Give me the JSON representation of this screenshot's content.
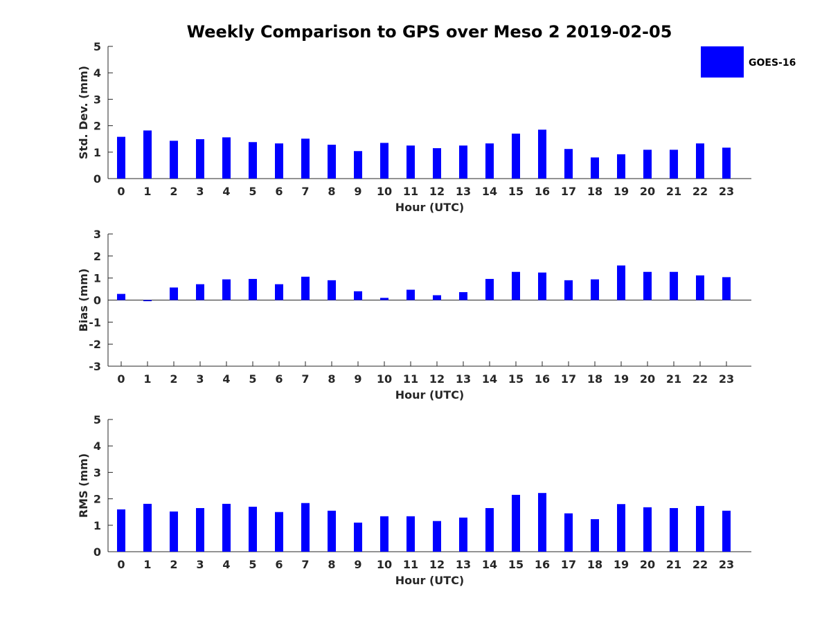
{
  "chart_data": {
    "title": "Weekly Comparison to GPS over Meso 2 2019-02-05",
    "legend": {
      "label": "GOES-16",
      "color": "#0000ff",
      "position": "top-right"
    },
    "bar_color": "#0000ff",
    "panels": [
      {
        "type": "bar",
        "name": "std-dev",
        "xlabel": "Hour (UTC)",
        "ylabel": "Std. Dev. (mm)",
        "categories": [
          "0",
          "1",
          "2",
          "3",
          "4",
          "5",
          "6",
          "7",
          "8",
          "9",
          "10",
          "11",
          "12",
          "13",
          "14",
          "15",
          "16",
          "17",
          "18",
          "19",
          "20",
          "21",
          "22",
          "23"
        ],
        "values": [
          1.58,
          1.82,
          1.43,
          1.49,
          1.56,
          1.38,
          1.33,
          1.51,
          1.28,
          1.04,
          1.35,
          1.25,
          1.15,
          1.25,
          1.33,
          1.7,
          1.85,
          1.12,
          0.8,
          0.92,
          1.09,
          1.09,
          1.33,
          1.17
        ],
        "ylim": [
          0,
          5
        ],
        "yticks": [
          "0",
          "1",
          "2",
          "3",
          "4",
          "5"
        ]
      },
      {
        "type": "bar",
        "name": "bias",
        "xlabel": "Hour (UTC)",
        "ylabel": "Bias (mm)",
        "categories": [
          "0",
          "1",
          "2",
          "3",
          "4",
          "5",
          "6",
          "7",
          "8",
          "9",
          "10",
          "11",
          "12",
          "13",
          "14",
          "15",
          "16",
          "17",
          "18",
          "19",
          "20",
          "21",
          "22",
          "23"
        ],
        "values": [
          0.28,
          -0.05,
          0.57,
          0.72,
          0.94,
          0.96,
          0.72,
          1.06,
          0.9,
          0.4,
          0.1,
          0.47,
          0.22,
          0.36,
          0.96,
          1.28,
          1.25,
          0.9,
          0.94,
          1.57,
          1.28,
          1.28,
          1.12,
          1.04
        ],
        "ylim": [
          -3,
          3
        ],
        "yticks": [
          "-3",
          "-2",
          "-1",
          "0",
          "1",
          "2",
          "3"
        ]
      },
      {
        "type": "bar",
        "name": "rms",
        "xlabel": "Hour (UTC)",
        "ylabel": "RMS (mm)",
        "categories": [
          "0",
          "1",
          "2",
          "3",
          "4",
          "5",
          "6",
          "7",
          "8",
          "9",
          "10",
          "11",
          "12",
          "13",
          "14",
          "15",
          "16",
          "17",
          "18",
          "19",
          "20",
          "21",
          "22",
          "23"
        ],
        "values": [
          1.6,
          1.81,
          1.52,
          1.65,
          1.81,
          1.7,
          1.5,
          1.84,
          1.55,
          1.1,
          1.34,
          1.34,
          1.16,
          1.29,
          1.65,
          2.15,
          2.22,
          1.45,
          1.23,
          1.8,
          1.68,
          1.65,
          1.73,
          1.55
        ],
        "ylim": [
          0,
          5
        ],
        "yticks": [
          "0",
          "1",
          "2",
          "3",
          "4",
          "5"
        ]
      }
    ]
  }
}
